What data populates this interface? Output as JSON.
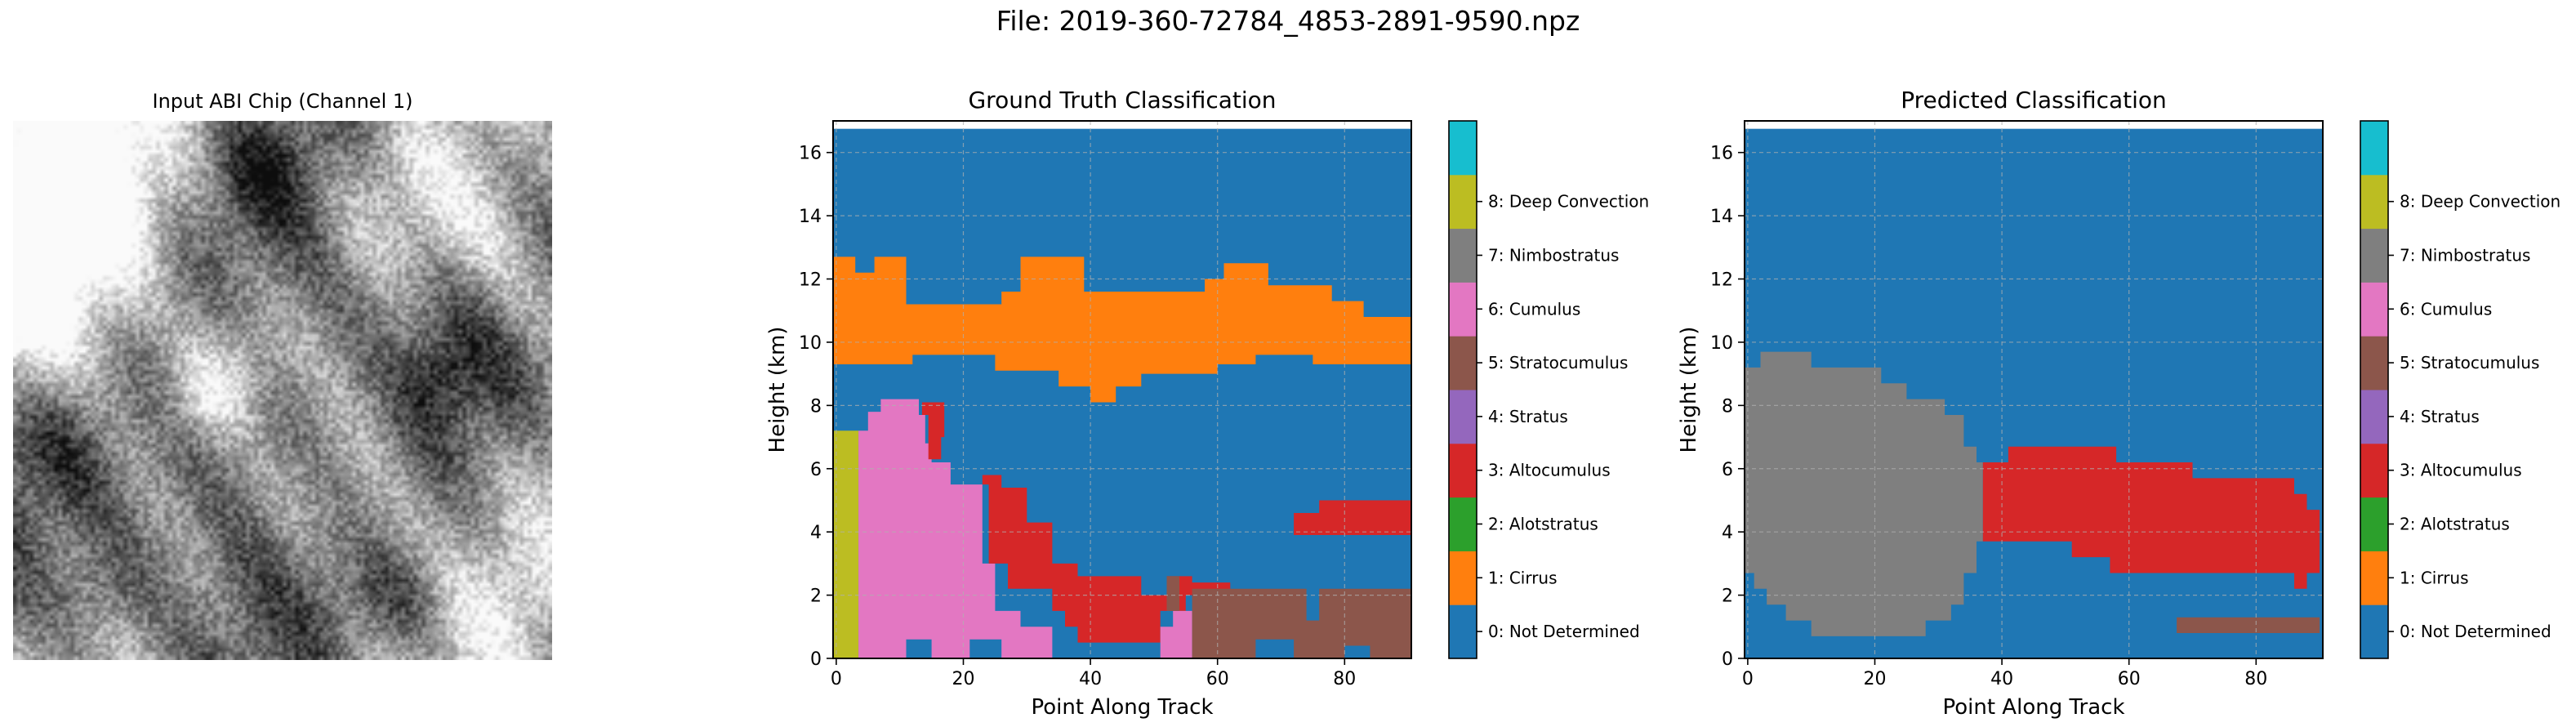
{
  "figure": {
    "suptitle": "File: 2019-360-72784_4853-2891-9590.npz",
    "input_title": "Input ABI Chip (Channel 1)",
    "input_colormap": "gray"
  },
  "chart_data": [
    {
      "type": "heatmap",
      "title": "Ground Truth Classification",
      "xlabel": "Point Along Track",
      "ylabel": "Height (km)",
      "xlim": [
        -0.5,
        90.5
      ],
      "ylim": [
        0,
        17
      ],
      "xticks": [
        0,
        20,
        40,
        60,
        80
      ],
      "yticks": [
        0,
        2,
        4,
        6,
        8,
        10,
        12,
        14,
        16
      ],
      "grid": true,
      "colorbar": {
        "ticks": [
          "0: Not Determined",
          "1: Cirrus",
          "2: Alotstratus",
          "3: Altocumulus",
          "4: Stratus",
          "5: Stratocumulus",
          "6: Cumulus",
          "7: Nimbostratus",
          "8: Deep Convection"
        ],
        "colors": [
          "#1f77b4",
          "#ff7f0e",
          "#2ca02c",
          "#d62728",
          "#9467bd",
          "#8c564b",
          "#e377c2",
          "#7f7f7f",
          "#bcbd22",
          "#17becf"
        ]
      },
      "background_class": 0,
      "regions": [
        {
          "class": 1,
          "label": "Cirrus",
          "polygon": [
            [
              -0.5,
              9.3
            ],
            [
              -0.5,
              12.7
            ],
            [
              3,
              12.7
            ],
            [
              3,
              12.2
            ],
            [
              6,
              12.2
            ],
            [
              6,
              12.7
            ],
            [
              11,
              12.7
            ],
            [
              11,
              11.2
            ],
            [
              26,
              11.2
            ],
            [
              26,
              11.6
            ],
            [
              29,
              11.6
            ],
            [
              29,
              12.7
            ],
            [
              39,
              12.7
            ],
            [
              39,
              11.6
            ],
            [
              58,
              11.6
            ],
            [
              58,
              12.0
            ],
            [
              61,
              12.0
            ],
            [
              61,
              12.5
            ],
            [
              68,
              12.5
            ],
            [
              68,
              11.8
            ],
            [
              78,
              11.8
            ],
            [
              78,
              11.3
            ],
            [
              83,
              11.3
            ],
            [
              83,
              10.8
            ],
            [
              90.5,
              10.8
            ],
            [
              90.5,
              9.3
            ],
            [
              75,
              9.3
            ],
            [
              75,
              9.6
            ],
            [
              66,
              9.6
            ],
            [
              66,
              9.3
            ],
            [
              60,
              9.3
            ],
            [
              60,
              9.0
            ],
            [
              48,
              9.0
            ],
            [
              48,
              8.6
            ],
            [
              44,
              8.6
            ],
            [
              44,
              8.1
            ],
            [
              40,
              8.1
            ],
            [
              40,
              8.6
            ],
            [
              35,
              8.6
            ],
            [
              35,
              9.1
            ],
            [
              25,
              9.1
            ],
            [
              25,
              9.6
            ],
            [
              12,
              9.6
            ],
            [
              12,
              9.3
            ]
          ]
        },
        {
          "class": 8,
          "label": "Deep Convection",
          "polygon": [
            [
              -0.5,
              0
            ],
            [
              -0.5,
              7.2
            ],
            [
              3.5,
              7.2
            ],
            [
              3.5,
              0
            ]
          ]
        },
        {
          "class": 6,
          "label": "Cumulus",
          "polygon": [
            [
              3.5,
              0
            ],
            [
              3.5,
              7.2
            ],
            [
              5,
              7.2
            ],
            [
              5,
              7.8
            ],
            [
              7,
              7.8
            ],
            [
              7,
              8.2
            ],
            [
              13,
              8.2
            ],
            [
              13,
              7.7
            ],
            [
              14,
              7.7
            ],
            [
              14,
              6.8
            ],
            [
              15,
              6.8
            ],
            [
              15,
              6.2
            ],
            [
              18,
              6.2
            ],
            [
              18,
              5.5
            ],
            [
              23,
              5.5
            ],
            [
              23,
              3.0
            ],
            [
              25,
              3.0
            ],
            [
              25,
              1.5
            ],
            [
              29,
              1.5
            ],
            [
              29,
              1.0
            ],
            [
              34,
              1.0
            ],
            [
              34,
              0
            ],
            [
              26,
              0
            ],
            [
              26,
              0.6
            ],
            [
              21,
              0.6
            ],
            [
              21,
              0
            ],
            [
              15,
              0
            ],
            [
              15,
              0.6
            ],
            [
              11,
              0.6
            ],
            [
              11,
              0
            ]
          ]
        },
        {
          "class": 3,
          "label": "Altocumulus",
          "polygon": [
            [
              13.5,
              7.7
            ],
            [
              13.5,
              8.1
            ],
            [
              17,
              8.1
            ],
            [
              17,
              7.0
            ],
            [
              16.5,
              7.0
            ],
            [
              16.5,
              6.3
            ],
            [
              14.5,
              6.3
            ],
            [
              14.5,
              7.7
            ]
          ]
        },
        {
          "class": 3,
          "label": "Altocumulus",
          "polygon": [
            [
              23,
              5.5
            ],
            [
              23,
              5.8
            ],
            [
              26,
              5.8
            ],
            [
              26,
              5.4
            ],
            [
              30,
              5.4
            ],
            [
              30,
              4.3
            ],
            [
              34,
              4.3
            ],
            [
              34,
              3.0
            ],
            [
              38,
              3.0
            ],
            [
              38,
              2.6
            ],
            [
              48,
              2.6
            ],
            [
              48,
              2.0
            ],
            [
              52,
              2.0
            ],
            [
              52,
              2.6
            ],
            [
              56,
              2.6
            ],
            [
              56,
              2.4
            ],
            [
              62,
              2.4
            ],
            [
              62,
              2.0
            ],
            [
              55,
              2.0
            ],
            [
              55,
              1.5
            ],
            [
              51,
              1.5
            ],
            [
              51,
              0.5
            ],
            [
              38,
              0.5
            ],
            [
              38,
              1.0
            ],
            [
              36,
              1.0
            ],
            [
              36,
              1.5
            ],
            [
              34,
              1.5
            ],
            [
              34,
              2.2
            ],
            [
              27,
              2.2
            ],
            [
              27,
              3.0
            ],
            [
              24,
              3.0
            ],
            [
              24,
              5.5
            ]
          ]
        },
        {
          "class": 3,
          "label": "Altocumulus",
          "polygon": [
            [
              72,
              3.9
            ],
            [
              72,
              4.6
            ],
            [
              76,
              4.6
            ],
            [
              76,
              5.0
            ],
            [
              90.5,
              5.0
            ],
            [
              90.5,
              3.9
            ]
          ]
        },
        {
          "class": 6,
          "label": "Cumulus",
          "polygon": [
            [
              51,
              0
            ],
            [
              51,
              1.0
            ],
            [
              53,
              1.0
            ],
            [
              53,
              1.5
            ],
            [
              56,
              1.5
            ],
            [
              56,
              0
            ]
          ]
        },
        {
          "class": 5,
          "label": "Stratocumulus",
          "polygon": [
            [
              52,
              1.5
            ],
            [
              52,
              2.6
            ],
            [
              54,
              2.6
            ],
            [
              54,
              1.5
            ]
          ]
        },
        {
          "class": 5,
          "label": "Stratocumulus",
          "polygon": [
            [
              56,
              0
            ],
            [
              56,
              2.2
            ],
            [
              74,
              2.2
            ],
            [
              74,
              1.2
            ],
            [
              76,
              1.2
            ],
            [
              76,
              2.2
            ],
            [
              90.5,
              2.2
            ],
            [
              90.5,
              0
            ],
            [
              84,
              0
            ],
            [
              84,
              0.4
            ],
            [
              80,
              0.4
            ],
            [
              80,
              0
            ],
            [
              72,
              0
            ],
            [
              72,
              0.6
            ],
            [
              66,
              0.6
            ],
            [
              66,
              0
            ]
          ]
        }
      ]
    },
    {
      "type": "heatmap",
      "title": "Predicted Classification",
      "xlabel": "Point Along Track",
      "ylabel": "Height (km)",
      "xlim": [
        -0.5,
        90.5
      ],
      "ylim": [
        0,
        17
      ],
      "xticks": [
        0,
        20,
        40,
        60,
        80
      ],
      "yticks": [
        0,
        2,
        4,
        6,
        8,
        10,
        12,
        14,
        16
      ],
      "grid": true,
      "colorbar": {
        "ticks": [
          "0: Not Determined",
          "1: Cirrus",
          "2: Alotstratus",
          "3: Altocumulus",
          "4: Stratus",
          "5: Stratocumulus",
          "6: Cumulus",
          "7: Nimbostratus",
          "8: Deep Convection"
        ],
        "colors": [
          "#1f77b4",
          "#ff7f0e",
          "#2ca02c",
          "#d62728",
          "#9467bd",
          "#8c564b",
          "#e377c2",
          "#7f7f7f",
          "#bcbd22",
          "#17becf"
        ]
      },
      "background_class": 0,
      "regions": [
        {
          "class": 7,
          "label": "Nimbostratus",
          "polygon": [
            [
              -0.5,
              2.7
            ],
            [
              -0.5,
              9.2
            ],
            [
              2,
              9.2
            ],
            [
              2,
              9.7
            ],
            [
              10,
              9.7
            ],
            [
              10,
              9.2
            ],
            [
              21,
              9.2
            ],
            [
              21,
              8.7
            ],
            [
              25,
              8.7
            ],
            [
              25,
              8.2
            ],
            [
              31,
              8.2
            ],
            [
              31,
              7.7
            ],
            [
              34,
              7.7
            ],
            [
              34,
              6.7
            ],
            [
              36,
              6.7
            ],
            [
              36,
              6.2
            ],
            [
              37,
              6.2
            ],
            [
              37,
              3.7
            ],
            [
              36,
              3.7
            ],
            [
              36,
              2.7
            ],
            [
              34,
              2.7
            ],
            [
              34,
              1.7
            ],
            [
              32,
              1.7
            ],
            [
              32,
              1.2
            ],
            [
              28,
              1.2
            ],
            [
              28,
              0.7
            ],
            [
              10,
              0.7
            ],
            [
              10,
              1.2
            ],
            [
              6,
              1.2
            ],
            [
              6,
              1.7
            ],
            [
              3,
              1.7
            ],
            [
              3,
              2.2
            ],
            [
              1,
              2.2
            ],
            [
              1,
              2.7
            ]
          ]
        },
        {
          "class": 3,
          "label": "Altocumulus",
          "polygon": [
            [
              37,
              3.7
            ],
            [
              37,
              6.2
            ],
            [
              41,
              6.2
            ],
            [
              41,
              6.7
            ],
            [
              58,
              6.7
            ],
            [
              58,
              6.2
            ],
            [
              70,
              6.2
            ],
            [
              70,
              5.7
            ],
            [
              86,
              5.7
            ],
            [
              86,
              5.2
            ],
            [
              88,
              5.2
            ],
            [
              88,
              4.7
            ],
            [
              90,
              4.7
            ],
            [
              90,
              2.7
            ],
            [
              88,
              2.7
            ],
            [
              88,
              2.2
            ],
            [
              86,
              2.2
            ],
            [
              86,
              2.7
            ],
            [
              57,
              2.7
            ],
            [
              57,
              3.2
            ],
            [
              51,
              3.2
            ],
            [
              51,
              3.7
            ]
          ]
        },
        {
          "class": 5,
          "label": "Stratocumulus",
          "polygon": [
            [
              67.5,
              0.8
            ],
            [
              67.5,
              1.3
            ],
            [
              90,
              1.3
            ],
            [
              90,
              0.8
            ]
          ]
        }
      ]
    }
  ]
}
